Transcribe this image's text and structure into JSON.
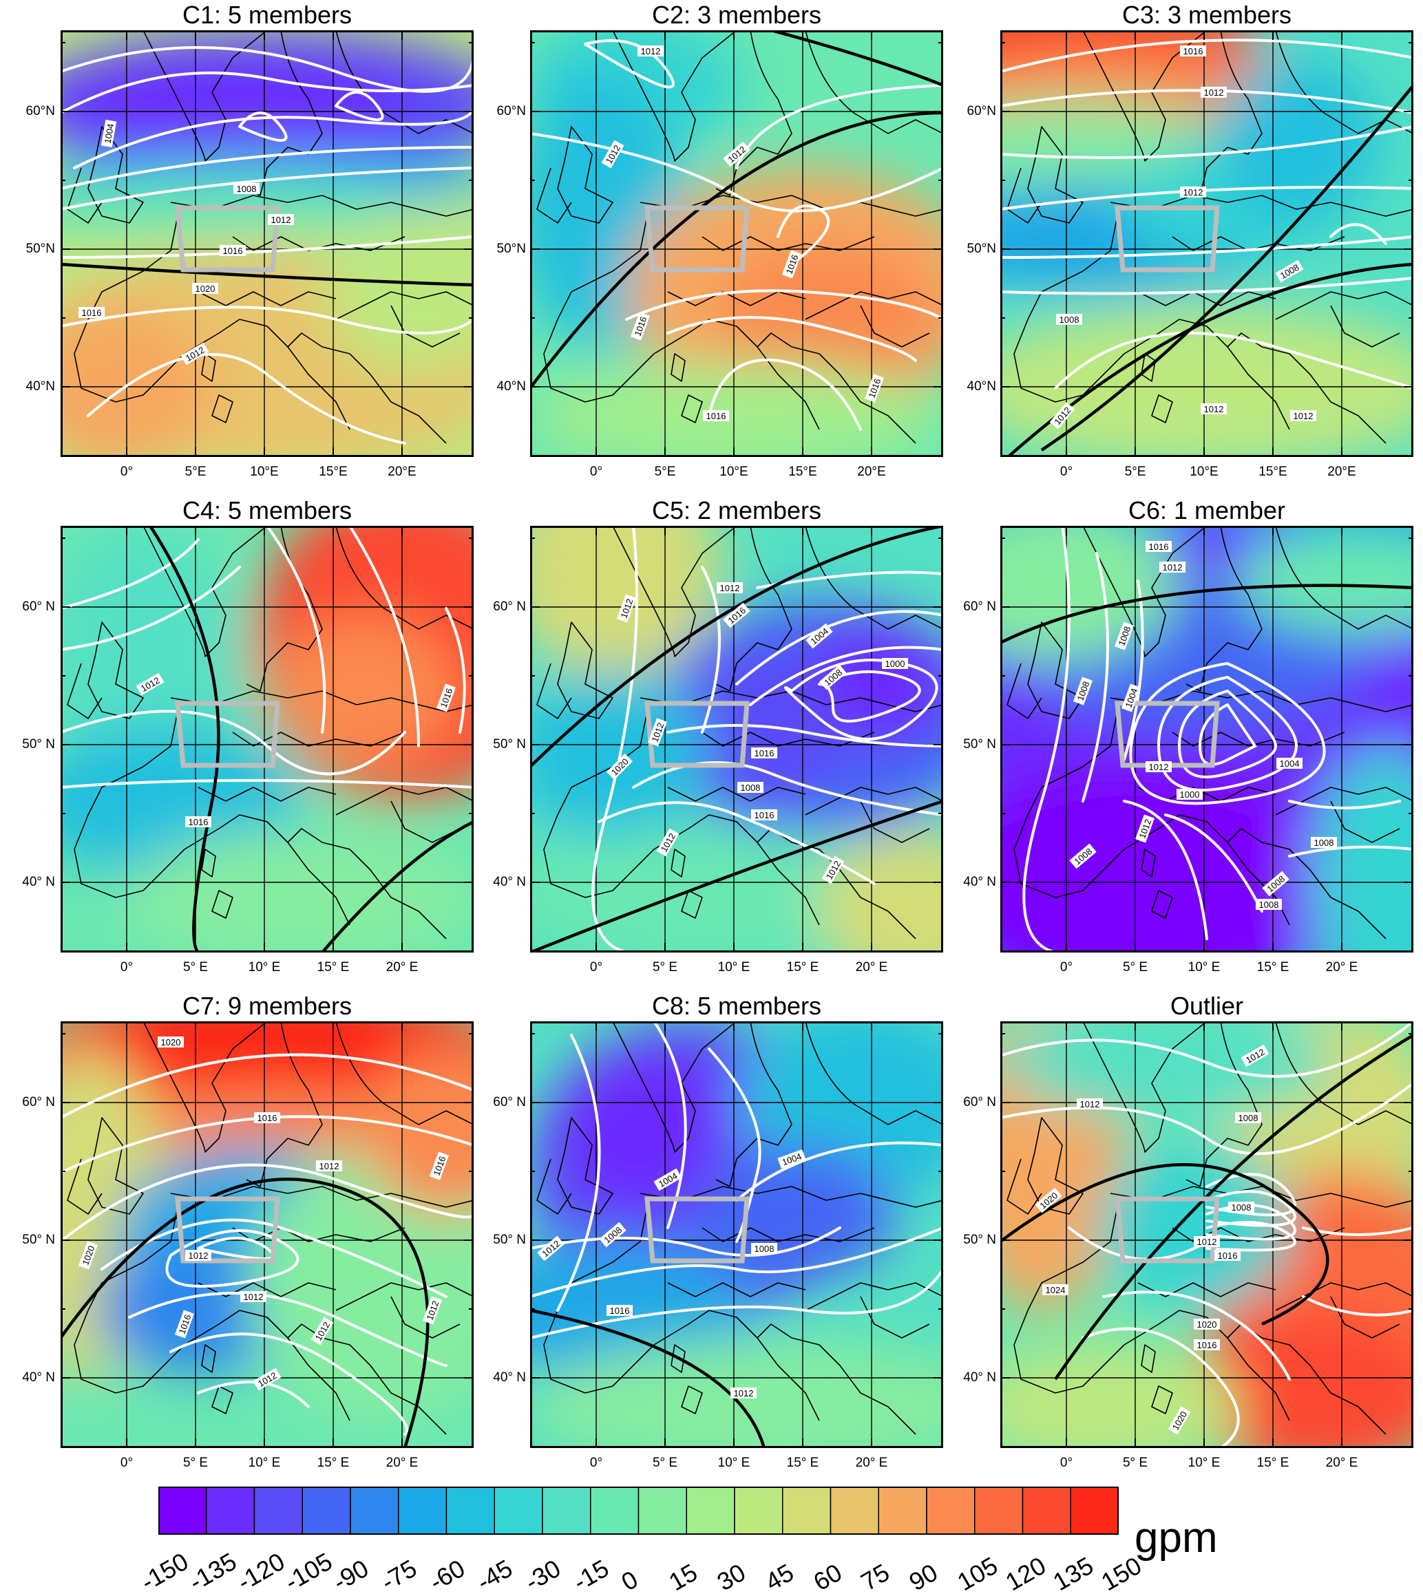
{
  "figure": {
    "panels": [
      {
        "id": "C1",
        "title": "C1: 5 members",
        "pattern": "c1"
      },
      {
        "id": "C2",
        "title": "C2: 3 members",
        "pattern": "c2"
      },
      {
        "id": "C3",
        "title": "C3: 3 members",
        "pattern": "c3"
      },
      {
        "id": "C4",
        "title": "C4: 5 members",
        "pattern": "c4"
      },
      {
        "id": "C5",
        "title": "C5: 2 members",
        "pattern": "c5"
      },
      {
        "id": "C6",
        "title": "C6: 1 member",
        "pattern": "c6"
      },
      {
        "id": "C7",
        "title": "C7: 9 members",
        "pattern": "c7"
      },
      {
        "id": "C8",
        "title": "C8: 5 members",
        "pattern": "c8"
      },
      {
        "id": "Outlier",
        "title": "Outlier",
        "pattern": "outlier"
      }
    ],
    "lat_labels": [
      "60°N",
      "50°N",
      "40°N"
    ],
    "lat_labels_spaced": [
      "60° N",
      "50° N",
      "40° N"
    ],
    "lon_labels_row1": [
      "0°",
      "5°E",
      "10°E",
      "15°E",
      "20°E"
    ],
    "lon_labels_spaced": [
      "0°",
      "5° E",
      "10° E",
      "15° E",
      "20° E"
    ],
    "isobar_labels": {
      "c1": [
        "1004",
        "1008",
        "1012",
        "1016",
        "1020",
        "1016",
        "1012"
      ],
      "c2": [
        "1012",
        "1012",
        "1012",
        "1016",
        "1016",
        "1016",
        "1016"
      ],
      "c3": [
        "1016",
        "1012",
        "1012",
        "1008",
        "1008",
        "1012",
        "1012",
        "1012"
      ],
      "c4": [
        "1012",
        "1016",
        "1016"
      ],
      "c5": [
        "1012",
        "1012",
        "1016",
        "1008",
        "1000",
        "1004",
        "1012",
        "1016",
        "1008",
        "1020",
        "1012",
        "1016",
        "1012"
      ],
      "c6": [
        "1016",
        "1012",
        "1008",
        "1008",
        "1004",
        "1012",
        "1000",
        "1004",
        "1008",
        "1012",
        "1008",
        "1008",
        "1008"
      ],
      "c7": [
        "1020",
        "1016",
        "1012",
        "1016",
        "1020",
        "1012",
        "1012",
        "1016",
        "1012",
        "1012",
        "1012"
      ],
      "c8": [
        "1004",
        "1004",
        "1012",
        "1008",
        "1008",
        "1016",
        "1012"
      ],
      "outlier": [
        "1012",
        "1012",
        "1008",
        "1020",
        "1008",
        "1012",
        "1016",
        "1024",
        "1020",
        "1016",
        "1020"
      ]
    },
    "colorbar": {
      "ticks": [
        "-150",
        "-135",
        "-120",
        "-105",
        "-90",
        "-75",
        "-60",
        "-45",
        "-30",
        "-15",
        "0",
        "15",
        "30",
        "45",
        "60",
        "75",
        "90",
        "105",
        "120",
        "135",
        "150"
      ],
      "unit": "gpm",
      "colors": [
        "#7a00ff",
        "#6a2cff",
        "#5a4cf8",
        "#4466f4",
        "#2f86ee",
        "#1aa8e6",
        "#20c0de",
        "#36d4d2",
        "#54e0c4",
        "#6ae8b2",
        "#86eca0",
        "#a2ee8c",
        "#bde880",
        "#d4dc78",
        "#e8c46c",
        "#f6a860",
        "#fa8a50",
        "#fc6a40",
        "#fc4a30",
        "#fc2818"
      ]
    }
  }
}
